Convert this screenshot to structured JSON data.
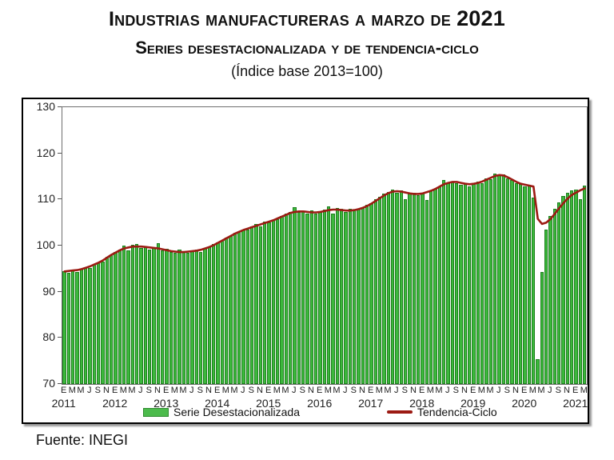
{
  "title": {
    "line1_main": "Industrias manufactureras a marzo de ",
    "line1_year": "2021",
    "line2": "Series desestacionalizada y de tendencia-ciclo",
    "line3": "(Índice base 2013=100)"
  },
  "source": "Fuente: INEGI",
  "legend": {
    "bars_label": "Serie Desestacionalizada",
    "line_label": "Tendencia-Ciclo"
  },
  "colors": {
    "bar_fill": "#3cb83c",
    "bar_edge": "#1d7f1d",
    "trend_line": "#9c1a13",
    "axis_frame": "#6e6e6e",
    "text": "#111111"
  },
  "chart_data": {
    "type": "bar+line",
    "title": "Industrias manufactureras a marzo de 2021 — Series desestacionalizada y de tendencia-ciclo (Índice base 2013=100)",
    "x_start": "2011-01",
    "x_end": "2021-03",
    "n_months": 123,
    "month_letter_cycle": [
      "E",
      "M",
      "M",
      "J",
      "S",
      "N"
    ],
    "years": [
      "2011",
      "2012",
      "2013",
      "2014",
      "2015",
      "2016",
      "2017",
      "2018",
      "2019",
      "2020",
      "2021"
    ],
    "ylim": [
      70,
      130
    ],
    "yticks": [
      70,
      80,
      90,
      100,
      110,
      120,
      130
    ],
    "grid": false,
    "legend_position": "bottom",
    "series": [
      {
        "name": "Serie Desestacionalizada",
        "type": "bar",
        "values": [
          94.4,
          94.1,
          94.7,
          94.3,
          95.0,
          95.3,
          95.2,
          96.0,
          96.1,
          96.6,
          97.5,
          98.0,
          98.7,
          99.2,
          100.0,
          99.0,
          100.2,
          100.3,
          99.4,
          99.9,
          99.2,
          99.6,
          100.5,
          98.9,
          99.3,
          98.6,
          98.4,
          99.1,
          98.6,
          98.5,
          99.0,
          99.1,
          98.6,
          99.5,
          99.6,
          100.3,
          100.7,
          101.0,
          101.8,
          102.0,
          102.8,
          102.9,
          103.5,
          103.4,
          104.1,
          104.6,
          104.2,
          105.2,
          105.0,
          105.6,
          105.7,
          106.4,
          107.0,
          107.3,
          108.3,
          107.2,
          107.4,
          107.0,
          107.6,
          107.0,
          107.4,
          107.8,
          108.5,
          106.9,
          108.1,
          107.9,
          107.3,
          107.9,
          107.6,
          108.0,
          108.3,
          108.8,
          109.2,
          110.0,
          110.6,
          111.2,
          111.7,
          112.2,
          111.5,
          112.0,
          110.0,
          111.2,
          111.4,
          111.0,
          111.4,
          109.8,
          112.0,
          112.3,
          112.8,
          114.2,
          113.5,
          113.9,
          113.6,
          113.1,
          113.6,
          112.9,
          113.3,
          113.9,
          113.6,
          114.5,
          114.4,
          115.6,
          115.2,
          115.5,
          114.6,
          114.2,
          113.6,
          113.3,
          112.9,
          113.1,
          110.4,
          75.3,
          94.2,
          103.4,
          106.4,
          108.0,
          109.4,
          110.7,
          111.4,
          111.9,
          112.2,
          110.0,
          113.0
        ]
      },
      {
        "name": "Tendencia-Ciclo",
        "type": "line",
        "values": [
          94.4,
          94.5,
          94.6,
          94.7,
          94.9,
          95.2,
          95.5,
          95.9,
          96.3,
          96.8,
          97.4,
          98.0,
          98.5,
          99.0,
          99.4,
          99.6,
          99.8,
          99.8,
          99.8,
          99.7,
          99.6,
          99.5,
          99.4,
          99.2,
          99.0,
          98.8,
          98.7,
          98.6,
          98.6,
          98.7,
          98.8,
          98.9,
          99.1,
          99.4,
          99.7,
          100.1,
          100.6,
          101.1,
          101.6,
          102.1,
          102.6,
          103.0,
          103.4,
          103.7,
          104.0,
          104.3,
          104.6,
          104.9,
          105.2,
          105.5,
          105.9,
          106.3,
          106.7,
          107.1,
          107.3,
          107.4,
          107.4,
          107.3,
          107.2,
          107.2,
          107.3,
          107.5,
          107.7,
          107.8,
          107.8,
          107.7,
          107.6,
          107.6,
          107.7,
          107.9,
          108.2,
          108.6,
          109.1,
          109.7,
          110.3,
          110.9,
          111.4,
          111.7,
          111.8,
          111.7,
          111.5,
          111.3,
          111.2,
          111.2,
          111.3,
          111.6,
          111.9,
          112.3,
          112.8,
          113.3,
          113.6,
          113.8,
          113.8,
          113.6,
          113.4,
          113.3,
          113.4,
          113.6,
          113.9,
          114.3,
          114.7,
          115.1,
          115.3,
          115.2,
          114.8,
          114.3,
          113.8,
          113.4,
          113.2,
          113.0,
          112.8,
          105.8,
          104.7,
          105.0,
          105.8,
          106.9,
          108.1,
          109.2,
          110.2,
          111.0,
          111.5,
          112.0,
          112.4
        ]
      }
    ]
  }
}
